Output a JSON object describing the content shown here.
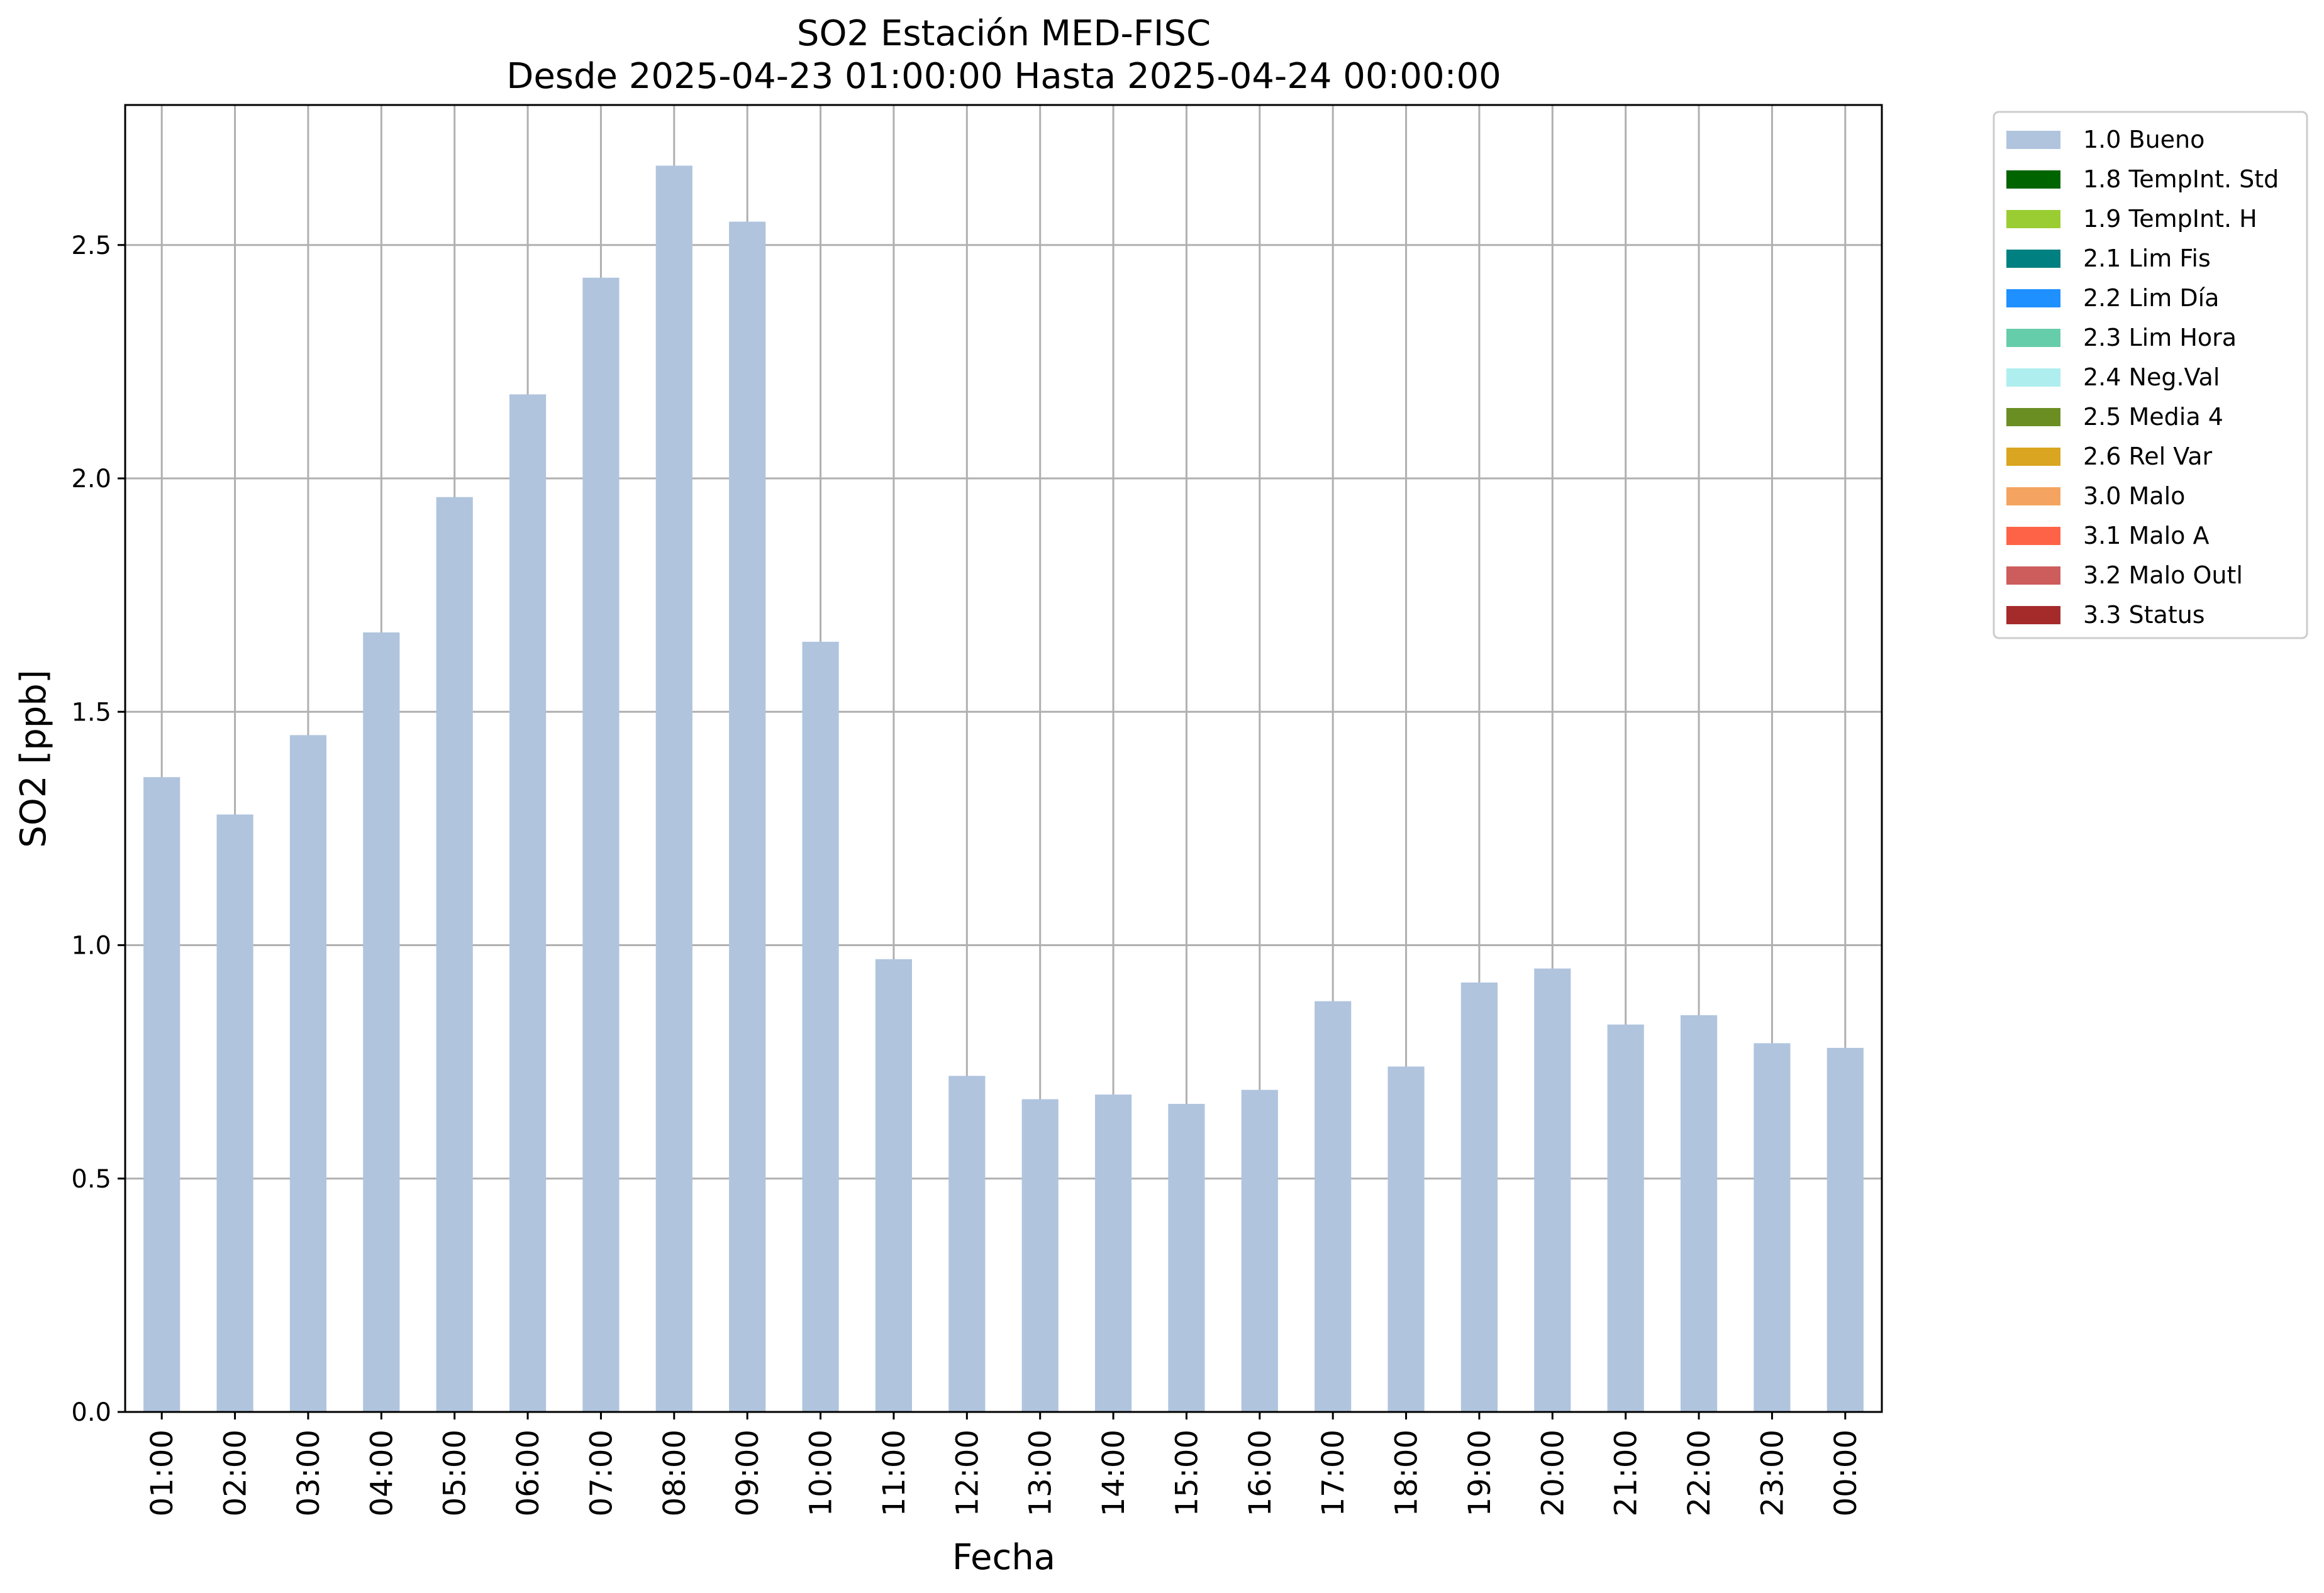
{
  "chart_data": {
    "type": "bar",
    "title": "SO2 Estación MED-FISC",
    "subtitle": "Desde 2025-04-23 01:00:00 Hasta 2025-04-24 00:00:00",
    "xlabel": "Fecha",
    "ylabel": "SO2 [ppb]",
    "ylim": [
      0,
      2.8
    ],
    "yticks": [
      "0.0",
      "0.5",
      "1.0",
      "1.5",
      "2.0",
      "2.5"
    ],
    "grid": true,
    "legend_position": "outside-right",
    "categories": [
      "01:00",
      "02:00",
      "03:00",
      "04:00",
      "05:00",
      "06:00",
      "07:00",
      "08:00",
      "09:00",
      "10:00",
      "11:00",
      "12:00",
      "13:00",
      "14:00",
      "15:00",
      "16:00",
      "17:00",
      "18:00",
      "19:00",
      "20:00",
      "21:00",
      "22:00",
      "23:00",
      "00:00"
    ],
    "series": [
      {
        "name": "1.0 Bueno",
        "color": "#b0c4de",
        "values": [
          1.36,
          1.28,
          1.45,
          1.67,
          1.96,
          2.18,
          2.43,
          2.67,
          2.55,
          1.65,
          0.97,
          0.72,
          0.67,
          0.68,
          0.66,
          0.69,
          0.88,
          0.74,
          0.92,
          0.95,
          0.83,
          0.85,
          0.79,
          0.78
        ]
      }
    ],
    "legend": [
      {
        "label": "1.0 Bueno",
        "color": "#b0c4de"
      },
      {
        "label": "1.8 TempInt. Std",
        "color": "#006400"
      },
      {
        "label": "1.9 TempInt. H",
        "color": "#9acd32"
      },
      {
        "label": "2.1 Lim Fis",
        "color": "#008080"
      },
      {
        "label": "2.2 Lim Día",
        "color": "#1e90ff"
      },
      {
        "label": "2.3 Lim Hora",
        "color": "#66cdaa"
      },
      {
        "label": "2.4 Neg.Val",
        "color": "#afeeee"
      },
      {
        "label": "2.5 Media 4",
        "color": "#6b8e23"
      },
      {
        "label": "2.6 Rel Var",
        "color": "#daa520"
      },
      {
        "label": "3.0 Malo",
        "color": "#f4a460"
      },
      {
        "label": "3.1 Malo A",
        "color": "#ff6347"
      },
      {
        "label": "3.2 Malo Outl",
        "color": "#cd5c5c"
      },
      {
        "label": "3.3 Status",
        "color": "#a52a2a"
      }
    ]
  }
}
